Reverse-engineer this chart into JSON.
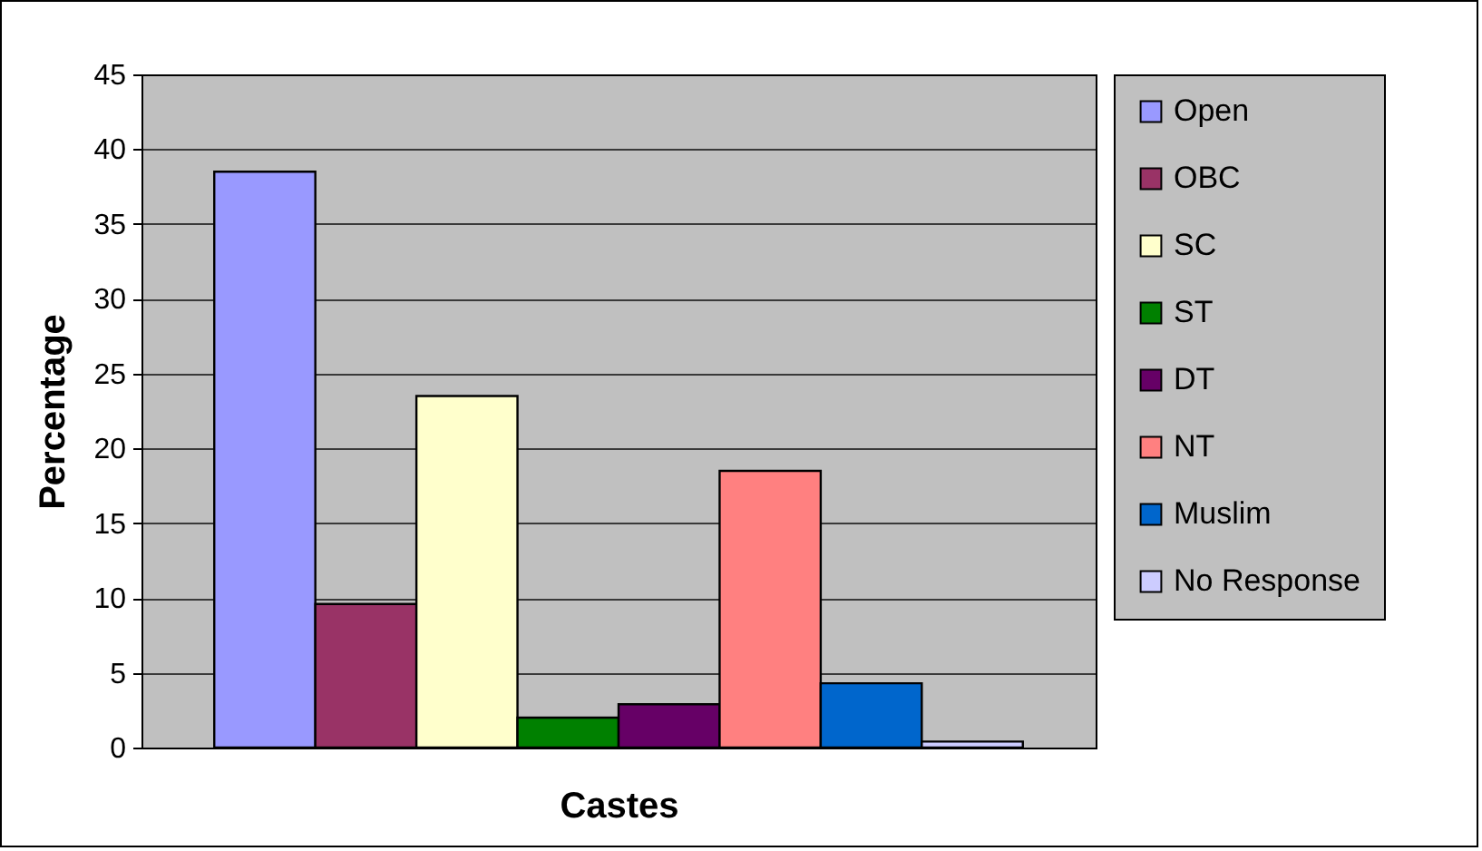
{
  "chart_data": {
    "type": "bar",
    "xlabel": "Castes",
    "ylabel": "Percentage",
    "categories": [
      null
    ],
    "series": [
      {
        "name": "Open",
        "color": "#9999ff",
        "values": [
          38.5
        ]
      },
      {
        "name": "OBC",
        "color": "#993366",
        "values": [
          9.6
        ]
      },
      {
        "name": "SC",
        "color": "#ffffcc",
        "values": [
          23.5
        ]
      },
      {
        "name": "ST",
        "color": "#008000",
        "values": [
          2.0
        ]
      },
      {
        "name": "DT",
        "color": "#660066",
        "values": [
          2.9
        ]
      },
      {
        "name": "NT",
        "color": "#ff8080",
        "values": [
          18.5
        ]
      },
      {
        "name": "Muslim",
        "color": "#0066cc",
        "values": [
          4.3
        ]
      },
      {
        "name": "No Response",
        "color": "#ccccff",
        "values": [
          0.4
        ]
      }
    ],
    "ylim": [
      0,
      45
    ],
    "yticks": [
      0,
      5,
      10,
      15,
      20,
      25,
      30,
      35,
      40,
      45
    ],
    "grid": "y",
    "legend": "right"
  }
}
